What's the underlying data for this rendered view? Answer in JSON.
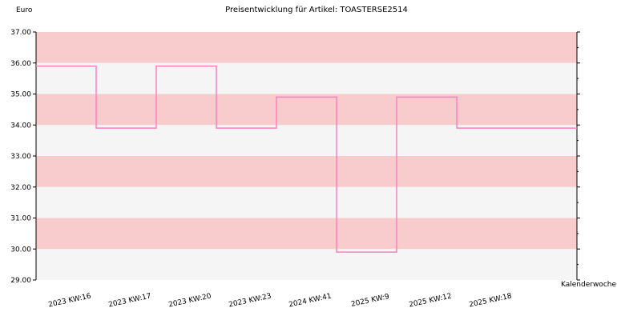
{
  "chart_data": {
    "type": "line",
    "step": true,
    "title": "Preisentwicklung für Artikel: TOASTERSE2514",
    "ylabel": "Euro",
    "xlabel": "Kalenderwoche",
    "ylim": [
      29.0,
      37.0
    ],
    "yticks": [
      29.0,
      30.0,
      31.0,
      32.0,
      33.0,
      34.0,
      35.0,
      36.0,
      37.0
    ],
    "ytick_labels": [
      "29.00",
      "30.00",
      "31.00",
      "32.00",
      "33.00",
      "34.00",
      "35.00",
      "36.00",
      "37.00"
    ],
    "categories": [
      "2023 KW:16",
      "2023 KW:17",
      "2023 KW:20",
      "2023 KW:23",
      "2024 KW:41",
      "2025 KW:9",
      "2025 KW:12",
      "2025 KW:18"
    ],
    "series": [
      {
        "values": [
          35.9,
          33.9,
          35.9,
          33.9,
          34.9,
          29.9,
          34.9,
          33.9
        ]
      }
    ],
    "grid": true,
    "colors": {
      "line": "#ff7fbf",
      "band_pink": "#f8cccc",
      "band_gray": "#f5f5f5",
      "axis": "#000000"
    }
  }
}
